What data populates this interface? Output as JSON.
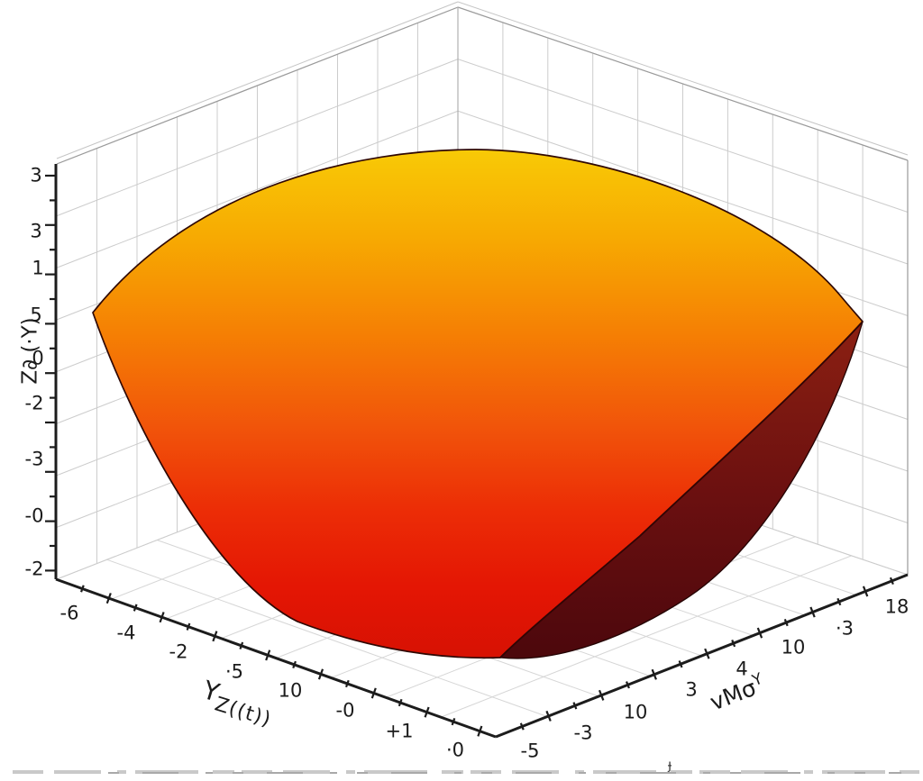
{
  "window": {
    "background": "#ffffff"
  },
  "chart_data": {
    "type": "surface",
    "projection": "3d",
    "title": "",
    "description": "Bowl-shaped 3D surface (paraboloid) drawn inside a white 3D box with light gray wall gridlines. The surface has a quadrilateral mesh; the rim is yellow, the interior grades through orange to bright red at the bowl bottom, and the dark maroon outer underside of the bowl is visible at the lower right. Axis tick text is distorted/garbled hand-drawn style.",
    "axes": {
      "x": {
        "label": "Y Z((t))",
        "label_main": "Y",
        "label_sub": "Z((t))",
        "ticks": [
          "-6",
          "-4",
          "-2",
          "·5",
          "10",
          "-0",
          "+1",
          "·0"
        ]
      },
      "y": {
        "label": "vMσ Y",
        "label_main": "vMσ",
        "label_sup": "Y",
        "ticks": [
          "-5",
          "-3",
          "10",
          "3",
          "4",
          "10",
          "·3",
          "18"
        ]
      },
      "z": {
        "label": "Z∂ (·Y)",
        "ticks": [
          "3",
          "3",
          "1",
          "5",
          "0",
          "-2",
          "-3",
          "-0",
          "-2"
        ]
      }
    },
    "surface": {
      "colormap": [
        "#f8ca06",
        "#f7aa02",
        "#f57f04",
        "#f1540a",
        "#ec2d06",
        "#e41604",
        "#d61103"
      ],
      "underside_colors": [
        "#8c2012",
        "#6b1010",
        "#4a070c"
      ],
      "mesh_line_color": "#5c1202",
      "outline_color": "#2f0803"
    },
    "grid": true,
    "grid_color": "#cccccc",
    "axis_color": "#1c1c1c"
  },
  "decorations": {
    "stray_glyph": "ɟ"
  }
}
